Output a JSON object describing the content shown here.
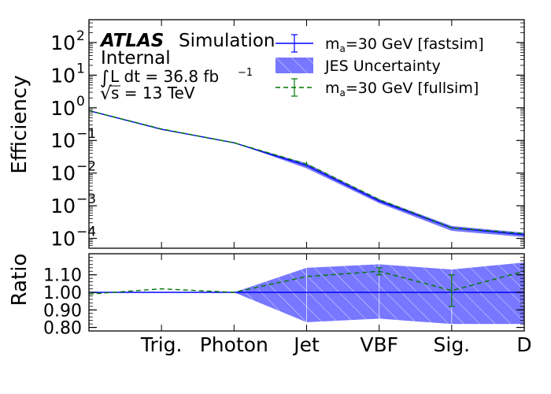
{
  "chart_data": [
    {
      "type": "line",
      "panel": "main",
      "ylabel": "Efficiency",
      "yscale": "log",
      "ylim": [
        5e-05,
        500
      ],
      "yticks": [
        {
          "value": 100,
          "label": "10",
          "exp": "2"
        },
        {
          "value": 10,
          "label": "10",
          "exp": "1"
        },
        {
          "value": 1,
          "label": "10",
          "exp": "0"
        },
        {
          "value": 0.1,
          "label": "10",
          "exp": "−1"
        },
        {
          "value": 0.01,
          "label": "10",
          "exp": "−2"
        },
        {
          "value": 0.001,
          "label": "10",
          "exp": "−3"
        },
        {
          "value": 0.0001,
          "label": "10",
          "exp": "−4"
        }
      ],
      "x": [
        0,
        1,
        2,
        3,
        4,
        5,
        6
      ],
      "categories": [
        "",
        "Trig.",
        "Photon",
        "Jet",
        "VBF",
        "Sig.",
        "D"
      ],
      "xlim": [
        0,
        6
      ],
      "series": [
        {
          "name": "m_a=30 GeV [fastsim]",
          "style": "solid",
          "color": "#0000ff",
          "values": [
            0.82,
            0.22,
            0.085,
            0.017,
            0.0014,
            0.00021,
            0.00013
          ]
        },
        {
          "name": "JES Uncertainty",
          "style": "band",
          "color": "#7777ff",
          "lower": [
            0.82,
            0.22,
            0.085,
            0.014,
            0.0012,
            0.00017,
            0.00011
          ],
          "upper": [
            0.82,
            0.22,
            0.085,
            0.02,
            0.0016,
            0.00024,
            0.00015
          ]
        },
        {
          "name": "m_a=30 GeV [fullsim]",
          "style": "dashed",
          "color": "#007700",
          "values": [
            0.82,
            0.225,
            0.085,
            0.019,
            0.00155,
            0.00021,
            0.00014
          ]
        }
      ],
      "legend_position": "top-right",
      "annotations": {
        "atlas": "ATLAS",
        "simulation": "Simulation",
        "internal": "Internal",
        "lumi_prefix": "L dt = 36.8 fb",
        "lumi_exp": "−1",
        "energy": "s = 13 TeV"
      }
    },
    {
      "type": "line",
      "panel": "ratio",
      "ylabel": "Ratio",
      "ylim": [
        0.78,
        1.22
      ],
      "yticks": [
        "1.10",
        "1.00",
        "0.90",
        "0.80"
      ],
      "x": [
        0,
        1,
        2,
        3,
        4,
        5,
        6
      ],
      "series": [
        {
          "name": "m_a=30 GeV [fastsim]",
          "style": "solid",
          "color": "#0000ff",
          "values": [
            1.0,
            1.0,
            1.0,
            1.0,
            1.0,
            1.0,
            1.0
          ]
        },
        {
          "name": "JES Uncertainty",
          "style": "band",
          "color": "#7777ff",
          "lower": [
            1.0,
            1.0,
            1.0,
            0.83,
            0.85,
            0.82,
            0.82
          ],
          "upper": [
            1.0,
            1.0,
            1.0,
            1.14,
            1.16,
            1.13,
            1.17
          ]
        },
        {
          "name": "m_a=30 GeV [fullsim]",
          "style": "dashed",
          "color": "#007700",
          "values": [
            0.99,
            1.02,
            1.0,
            1.09,
            1.12,
            1.01,
            1.12
          ]
        }
      ]
    }
  ]
}
